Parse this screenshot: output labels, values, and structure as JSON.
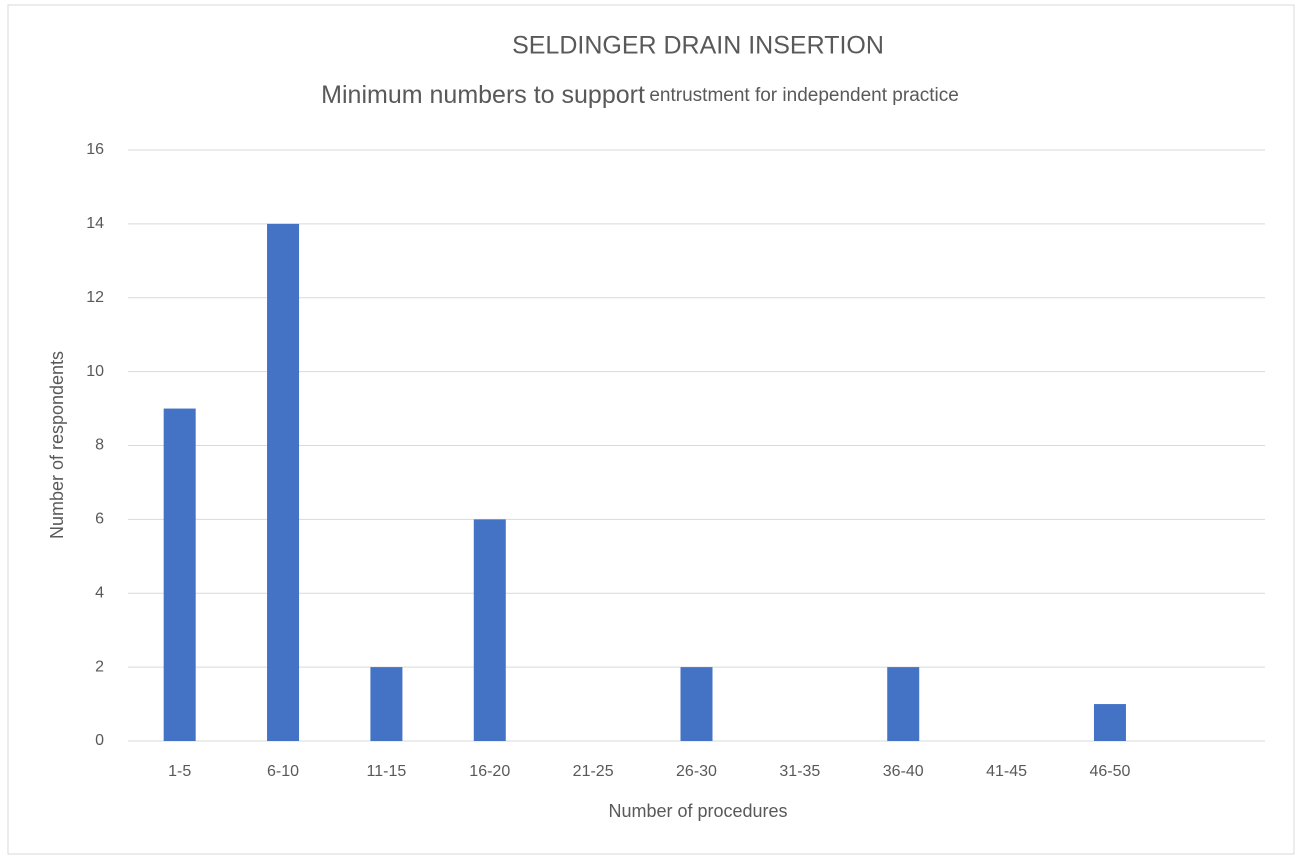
{
  "chart_data": {
    "type": "bar",
    "title": "SELDINGER DRAIN INSERTION",
    "subtitle": [
      "Minimum numbers to support",
      "entrustment for independent practice"
    ],
    "x_label": "Number of procedures",
    "y_label": "Number of respondents",
    "categories": [
      "1-5",
      "6-10",
      "11-15",
      "16-20",
      "21-25",
      "26-30",
      "31-35",
      "36-40",
      "41-45",
      "46-50",
      null
    ],
    "values": [
      9,
      14,
      2,
      6,
      0,
      2,
      0,
      2,
      0,
      1,
      null
    ],
    "color": "#4472c4",
    "ylim": [
      0,
      16
    ],
    "yticks": [
      0,
      2,
      4,
      6,
      8,
      10,
      12,
      14,
      16
    ],
    "grid": true
  }
}
